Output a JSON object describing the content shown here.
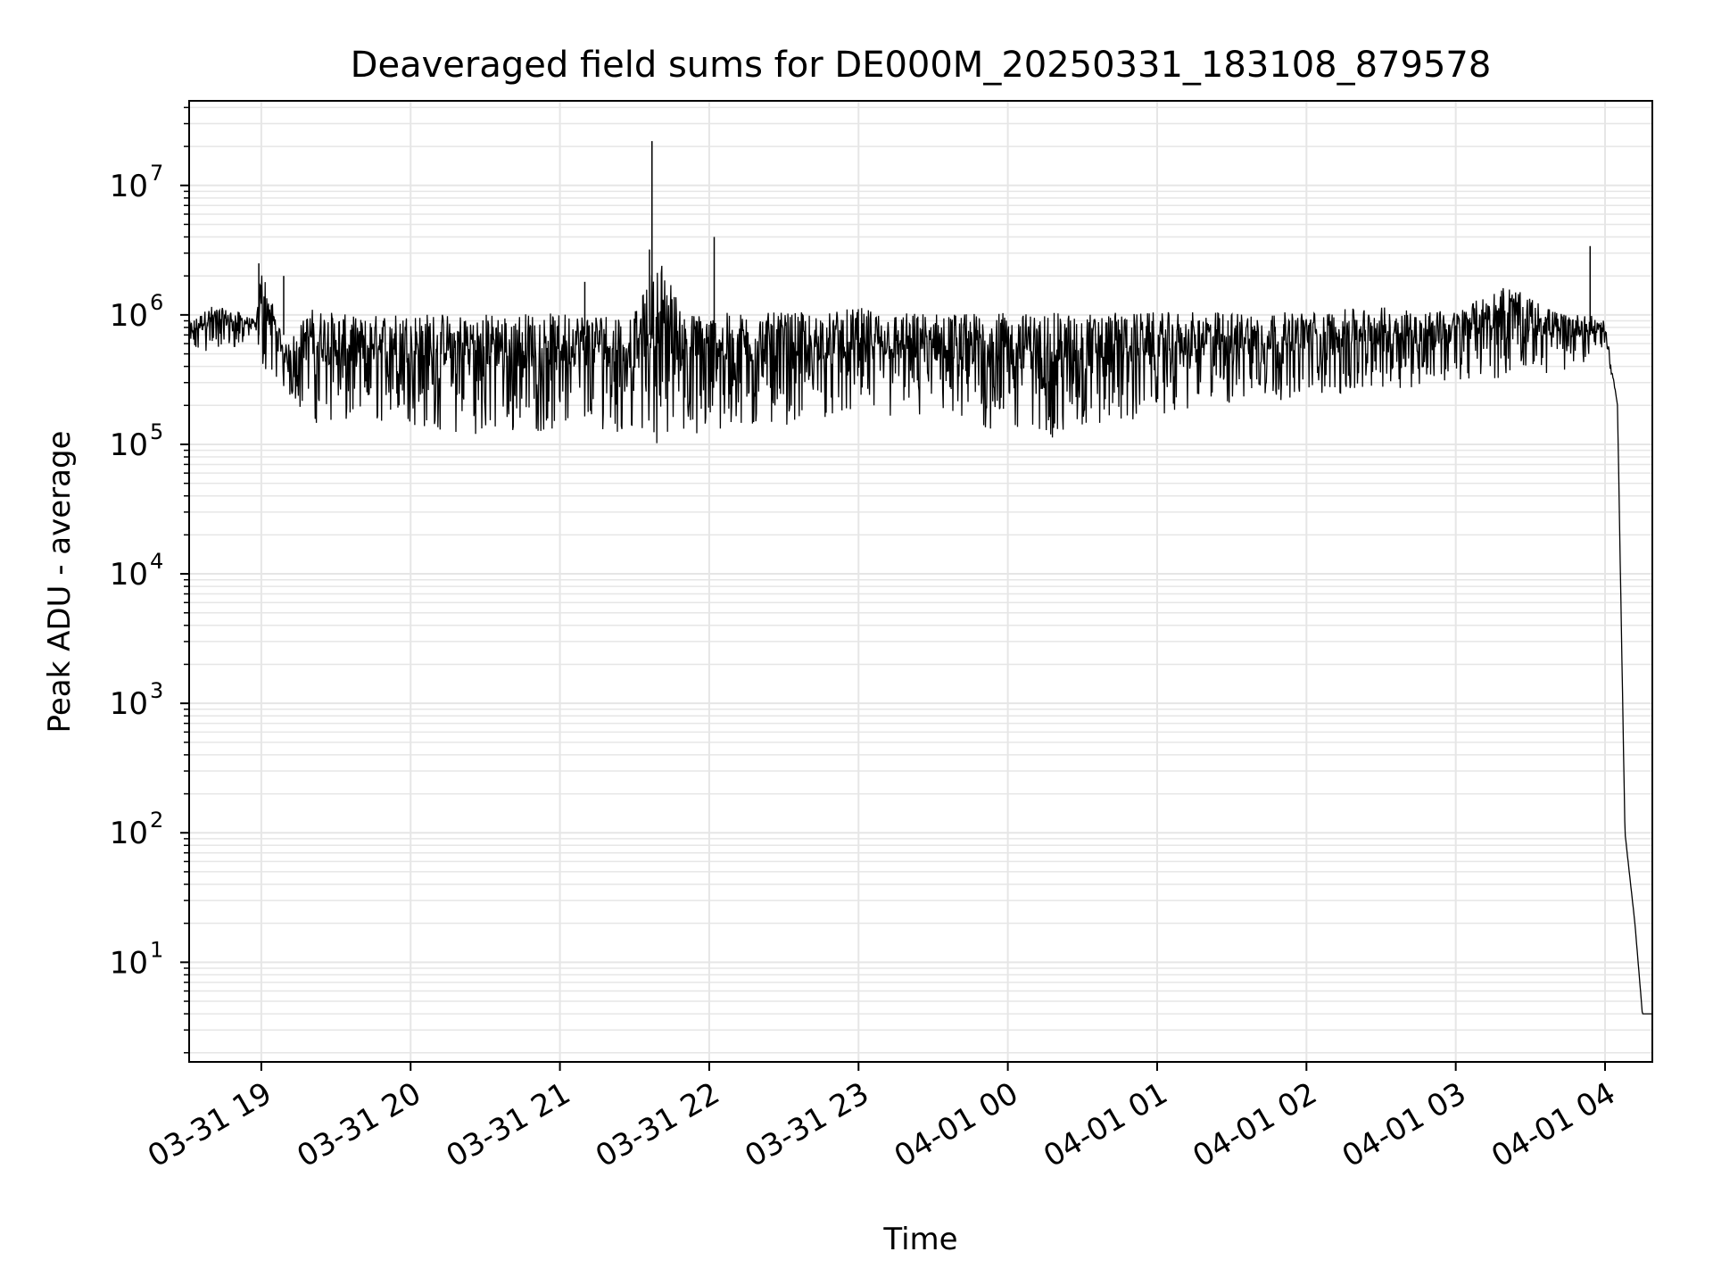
{
  "chart_data": {
    "type": "line",
    "title": "Deaveraged field sums for DE000M_20250331_183108_879578",
    "xlabel": "Time",
    "ylabel": "Peak ADU - average",
    "yscale": "log",
    "ylim": [
      1.7,
      45000000
    ],
    "xlim": [
      "03-31 18:31",
      "04-01 04:19"
    ],
    "x_ticks": [
      "03-31 19",
      "03-31 20",
      "03-31 21",
      "03-31 22",
      "03-31 23",
      "04-01 00",
      "04-01 01",
      "04-01 02",
      "04-01 03",
      "04-01 04"
    ],
    "y_ticks": [
      {
        "base": "10",
        "exp": "1",
        "value": 10
      },
      {
        "base": "10",
        "exp": "2",
        "value": 100
      },
      {
        "base": "10",
        "exp": "3",
        "value": 1000
      },
      {
        "base": "10",
        "exp": "4",
        "value": 10000
      },
      {
        "base": "10",
        "exp": "5",
        "value": 100000
      },
      {
        "base": "10",
        "exp": "6",
        "value": 1000000
      },
      {
        "base": "10",
        "exp": "7",
        "value": 10000000
      }
    ],
    "grid": true,
    "line_color": "#000000",
    "grid_color": "#e6e6e6",
    "series": [
      {
        "x": [
          "03-31 18:31",
          "03-31 18:40",
          "03-31 18:50",
          "03-31 18:58",
          "03-31 19:00",
          "03-31 19:10",
          "03-31 19:20",
          "03-31 19:30",
          "03-31 19:40",
          "03-31 19:50",
          "03-31 20:00",
          "03-31 20:15",
          "03-31 20:30",
          "03-31 20:45",
          "03-31 21:00",
          "03-31 21:15",
          "03-31 21:30",
          "03-31 21:40",
          "03-31 21:50",
          "03-31 22:00",
          "03-31 22:15",
          "03-31 22:30",
          "03-31 22:45",
          "03-31 23:00",
          "03-31 23:15",
          "03-31 23:30",
          "03-31 23:45",
          "04-01 00:00",
          "04-01 00:20",
          "04-01 00:40",
          "04-01 01:00",
          "04-01 01:30",
          "04-01 02:00",
          "04-01 02:30",
          "04-01 03:00",
          "04-01 03:20",
          "04-01 03:40",
          "04-01 03:55",
          "04-01 04:00",
          "04-01 04:05",
          "04-01 04:08",
          "04-01 04:12",
          "04-01 04:15",
          "04-01 04:19"
        ],
        "y_high": [
          900000,
          1200000,
          1100000,
          900000,
          2500000,
          600000,
          1200000,
          1100000,
          1000000,
          1100000,
          1100000,
          1100000,
          1100000,
          1100000,
          1100000,
          1100000,
          1100000,
          3200000,
          1100000,
          1100000,
          1100000,
          1100000,
          1100000,
          1200000,
          1100000,
          1100000,
          1100000,
          1100000,
          1100000,
          1100000,
          1100000,
          1100000,
          1100000,
          1200000,
          1100000,
          1800000,
          1100000,
          1000000,
          900000,
          200000,
          100,
          20,
          4,
          4
        ],
        "y_low": [
          500000,
          500000,
          550000,
          700000,
          400000,
          250000,
          150000,
          130000,
          140000,
          150000,
          140000,
          120000,
          120000,
          120000,
          130000,
          130000,
          120000,
          100000,
          110000,
          110000,
          130000,
          140000,
          160000,
          170000,
          150000,
          150000,
          130000,
          120000,
          110000,
          130000,
          170000,
          200000,
          230000,
          260000,
          300000,
          330000,
          350000,
          450000,
          600000,
          200000,
          100,
          20,
          4,
          4
        ]
      }
    ],
    "spikes": [
      {
        "x": "03-31 18:59",
        "y": 2500000
      },
      {
        "x": "03-31 19:09",
        "y": 2000000
      },
      {
        "x": "03-31 21:10",
        "y": 1800000
      },
      {
        "x": "03-31 21:37",
        "y": 22000000
      },
      {
        "x": "03-31 21:36",
        "y": 3200000
      },
      {
        "x": "03-31 22:02",
        "y": 4000000
      },
      {
        "x": "04-01 03:54",
        "y": 3400000
      }
    ]
  }
}
